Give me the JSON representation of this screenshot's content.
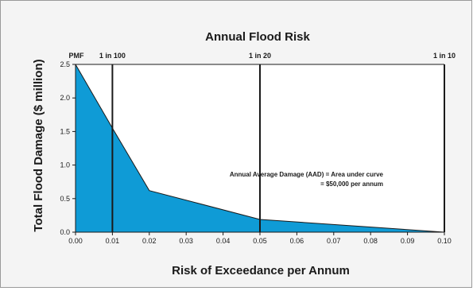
{
  "chart_data": {
    "type": "area",
    "title": "Annual Flood Risk",
    "xlabel": "Risk of Exceedance per Annum",
    "ylabel": "Total Flood Damage ($ million)",
    "xlim": [
      0,
      0.1
    ],
    "ylim": [
      0,
      2.5
    ],
    "x_ticks": [
      "0.00",
      "0.01",
      "0.02",
      "0.03",
      "0.04",
      "0.05",
      "0.06",
      "0.07",
      "0.08",
      "0.09",
      "0.10"
    ],
    "y_ticks": [
      "0.0",
      "0.5",
      "1.0",
      "1.5",
      "2.0",
      "2.5"
    ],
    "x": [
      0,
      0.01,
      0.02,
      0.05,
      0.1
    ],
    "y": [
      2.5,
      1.55,
      0.62,
      0.19,
      0.0
    ],
    "fill_color": "#0f9bd6",
    "line_color": "#1a1a1a",
    "grid": false,
    "reference_lines": [
      {
        "x": 0.01,
        "label": "1 in 100"
      },
      {
        "x": 0.05,
        "label": "1 in 20"
      },
      {
        "x": 0.1,
        "label": "1 in 10"
      }
    ],
    "top_left_label": "PMF",
    "annotation": {
      "line1": "Annual Average Damage (AAD) = Area under curve",
      "line2": "= $50,000 per annum"
    }
  }
}
